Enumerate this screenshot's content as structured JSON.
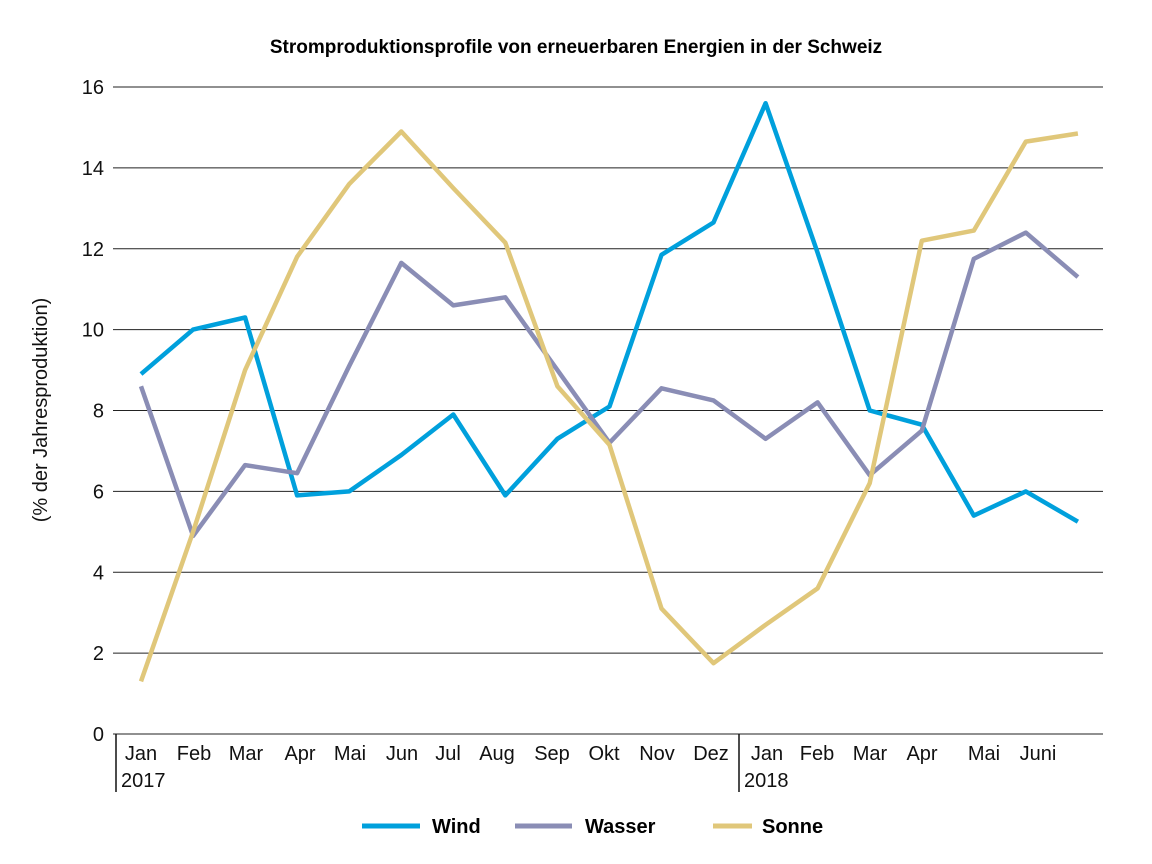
{
  "chart_data": {
    "type": "line",
    "title": "Stromproduktionsprofile von erneuerbaren Energien in der Schweiz",
    "xlabel": "",
    "ylabel": "(% der Jahresproduktion)",
    "ylim": [
      0,
      16
    ],
    "yticks": [
      0,
      2,
      4,
      6,
      8,
      10,
      12,
      14,
      16
    ],
    "grid": true,
    "legend_position": "bottom",
    "x_tick_labels": [
      "Jan",
      "Feb",
      "Mar",
      "Apr",
      "Mai",
      "Jun",
      "Jul",
      "Aug",
      "Sep",
      "Okt",
      "Nov",
      "Dez",
      "Jan",
      "Feb",
      "Mar",
      "Apr",
      "Mai",
      "Juni"
    ],
    "year_labels": [
      "2017",
      "2018"
    ],
    "x": [
      "2017-01",
      "2017-02",
      "2017-03",
      "2017-04",
      "2017-05",
      "2017-06",
      "2017-07",
      "2017-08",
      "2017-09",
      "2017-10",
      "2017-11",
      "2017-12",
      "2018-01",
      "2018-02",
      "2018-03",
      "2018-04",
      "2018-05",
      "2018-06",
      "2018-07"
    ],
    "series": [
      {
        "name": "Wind",
        "color": "#00a0dc",
        "values": [
          8.9,
          10.0,
          10.3,
          5.9,
          6.0,
          6.9,
          7.9,
          5.9,
          7.3,
          8.1,
          11.85,
          12.65,
          15.6,
          11.9,
          8.0,
          7.65,
          5.4,
          6.0,
          5.25
        ]
      },
      {
        "name": "Wasser",
        "color": "#8a8db5",
        "values": [
          8.6,
          4.9,
          6.65,
          6.45,
          9.1,
          11.65,
          10.6,
          10.8,
          9.0,
          7.2,
          8.55,
          8.25,
          7.3,
          8.2,
          6.4,
          7.5,
          11.75,
          12.4,
          11.3
        ]
      },
      {
        "name": "Sonne",
        "color": "#e0c77a",
        "values": [
          1.3,
          5.0,
          9.0,
          11.8,
          13.6,
          14.9,
          13.5,
          12.15,
          8.6,
          7.15,
          3.1,
          1.75,
          2.7,
          3.6,
          6.2,
          12.2,
          12.45,
          14.65,
          14.85
        ]
      }
    ]
  }
}
